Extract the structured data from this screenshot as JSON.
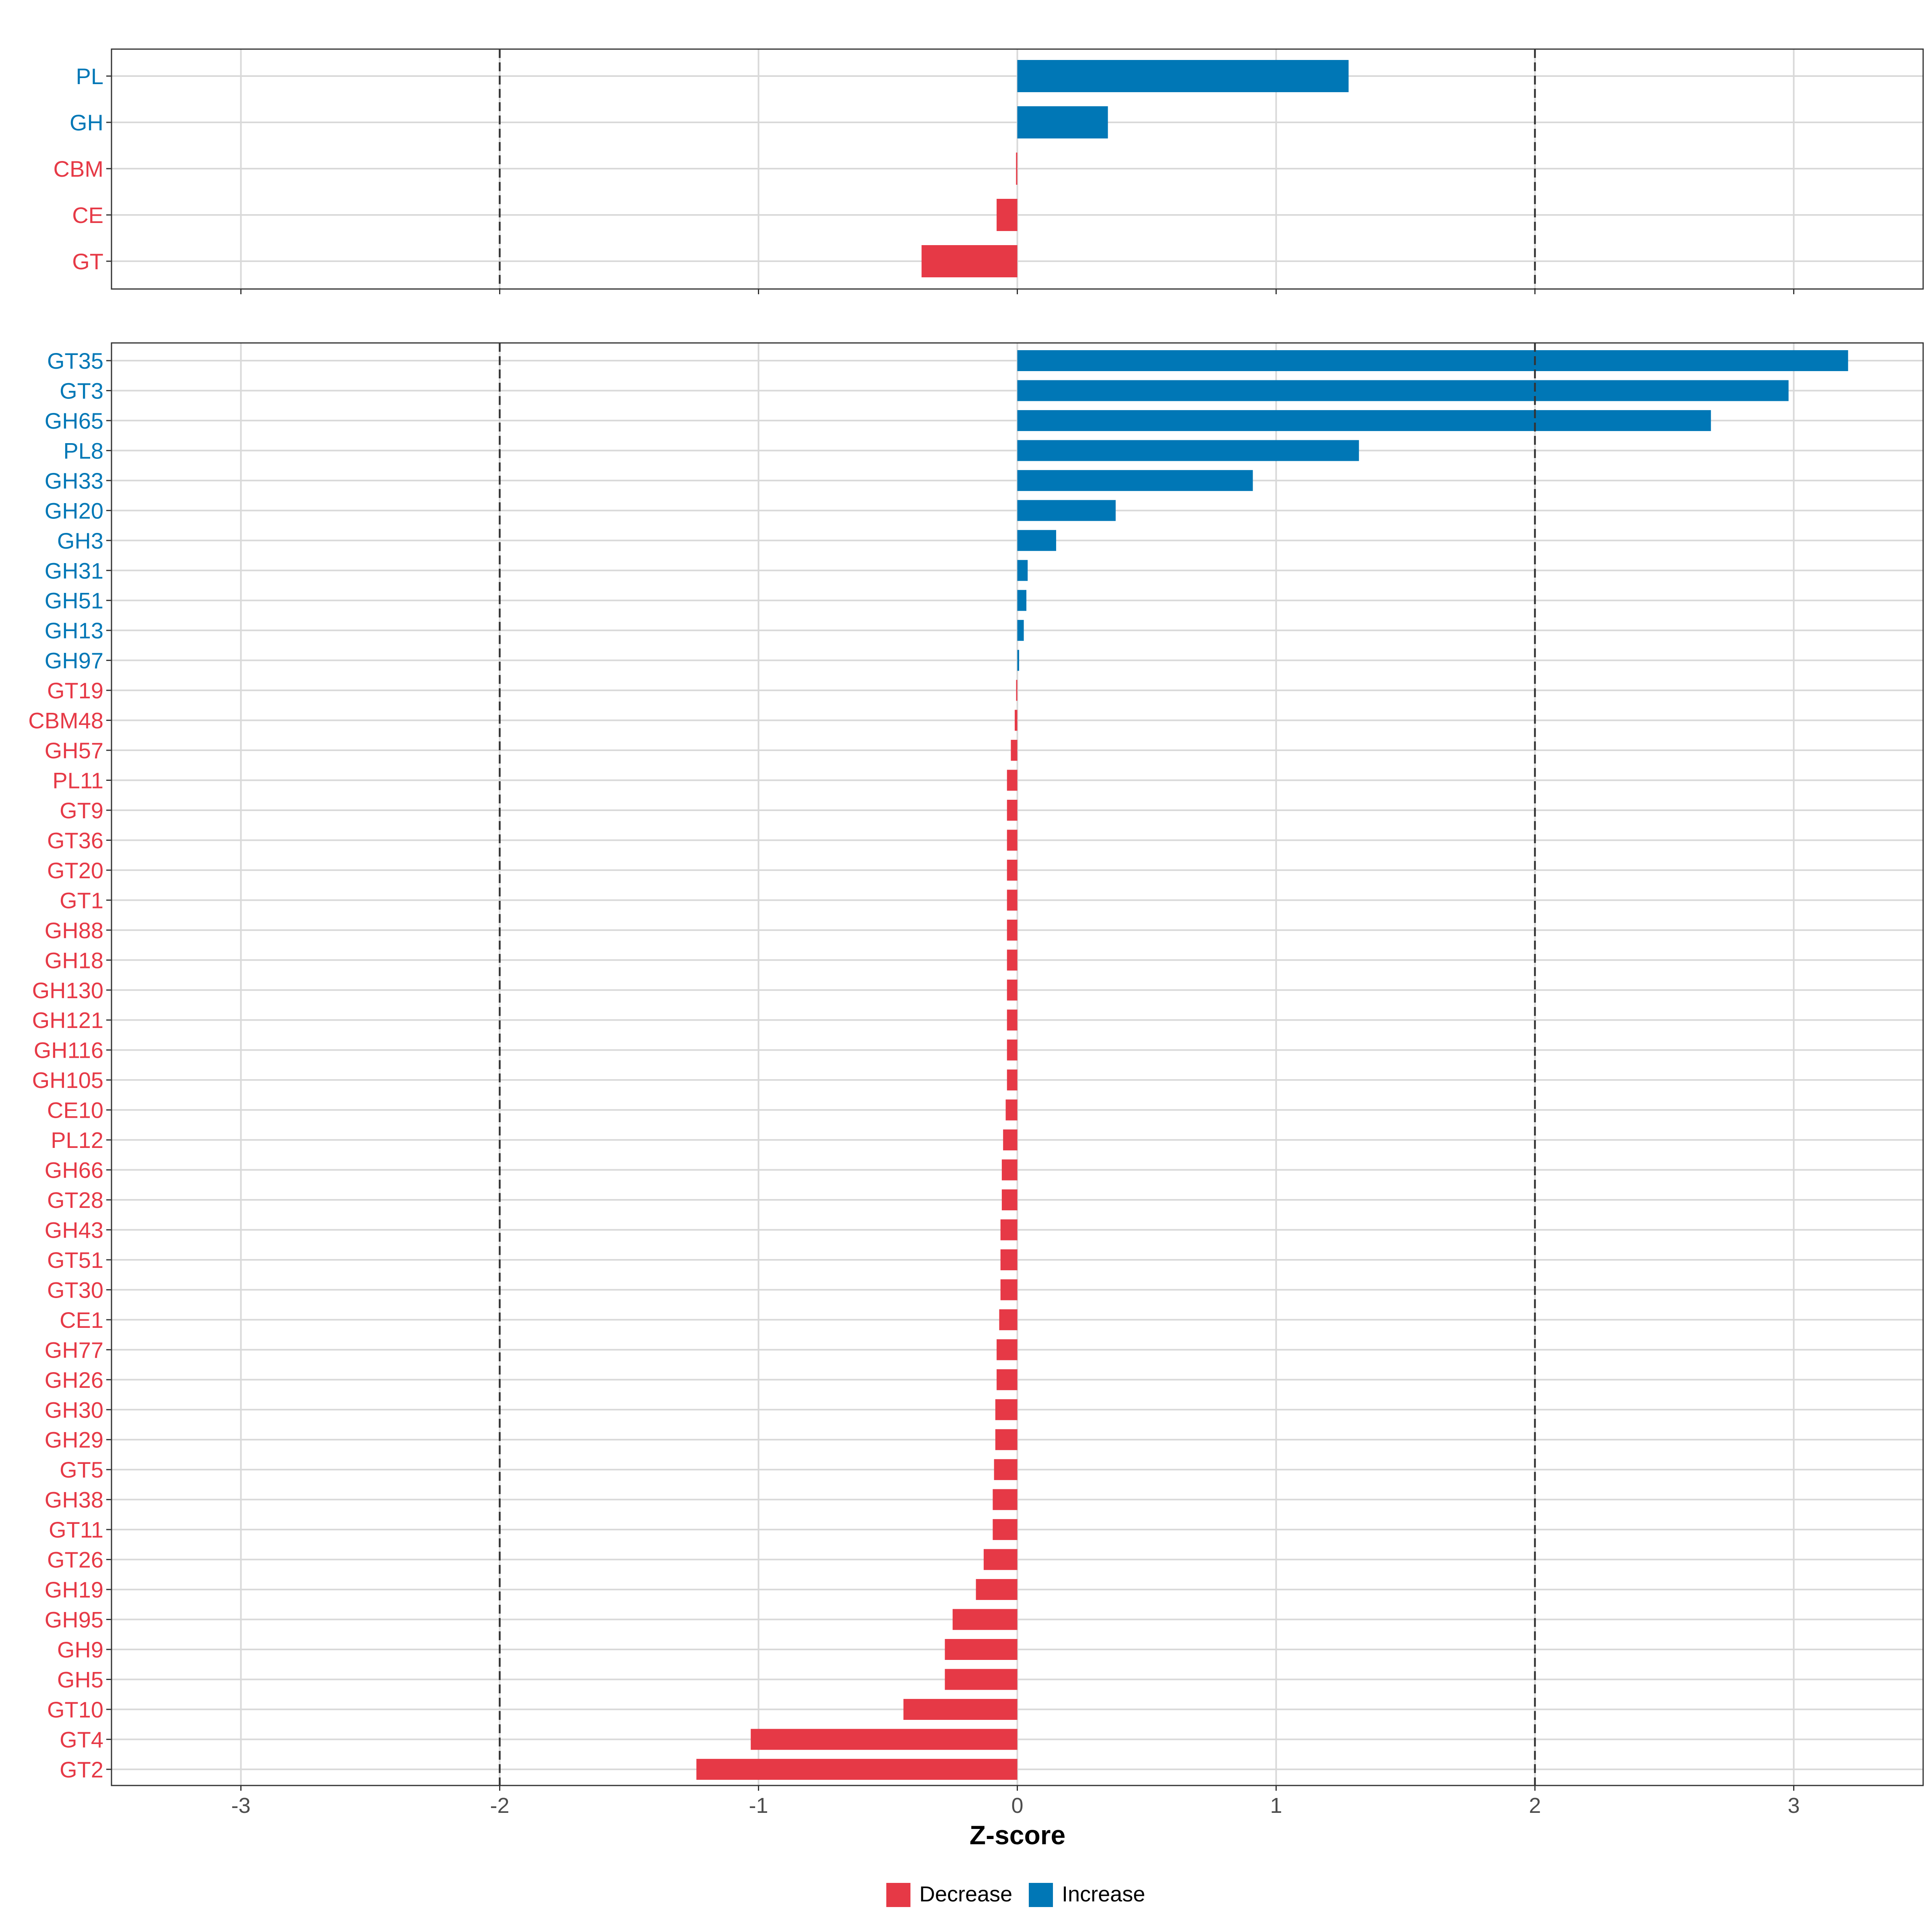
{
  "colors": {
    "decrease": "#E63946",
    "increase": "#0077B6",
    "grid": "#D9D9D9",
    "panel_border": "#333333",
    "threshold_line": "#333333",
    "axis_text": "#4D4D4D"
  },
  "chart_data": [
    {
      "type": "bar",
      "orientation": "horizontal",
      "panel": "top",
      "xlabel": "",
      "xlim": [
        -3.5,
        3.5
      ],
      "xticks": [
        -3,
        -2,
        -1,
        0,
        1,
        2,
        3
      ],
      "threshold_lines": [
        -2,
        2
      ],
      "categories": [
        "PL",
        "GH",
        "CBM",
        "CE",
        "GT"
      ],
      "values": [
        1.28,
        0.35,
        -0.005,
        -0.08,
        -0.37
      ],
      "direction": [
        "Increase",
        "Increase",
        "Decrease",
        "Decrease",
        "Decrease"
      ]
    },
    {
      "type": "bar",
      "orientation": "horizontal",
      "panel": "bottom",
      "xlabel": "Z-score",
      "xlim": [
        -3.5,
        3.5
      ],
      "xticks": [
        -3,
        -2,
        -1,
        0,
        1,
        2,
        3
      ],
      "xtick_labels": [
        "-3",
        "-2",
        "-1",
        "0",
        "1",
        "2",
        "3"
      ],
      "threshold_lines": [
        -2,
        2
      ],
      "categories": [
        "GT35",
        "GT3",
        "GH65",
        "PL8",
        "GH33",
        "GH20",
        "GH3",
        "GH31",
        "GH51",
        "GH13",
        "GH97",
        "GT19",
        "CBM48",
        "GH57",
        "PL11",
        "GT9",
        "GT36",
        "GT20",
        "GT1",
        "GH88",
        "GH18",
        "GH130",
        "GH121",
        "GH116",
        "GH105",
        "CE10",
        "PL12",
        "GH66",
        "GT28",
        "GH43",
        "GT51",
        "GT30",
        "CE1",
        "GH77",
        "GH26",
        "GH30",
        "GH29",
        "GT5",
        "GH38",
        "GT11",
        "GT26",
        "GH19",
        "GH95",
        "GH9",
        "GH5",
        "GT10",
        "GT4",
        "GT2"
      ],
      "values": [
        3.21,
        2.98,
        2.68,
        1.32,
        0.91,
        0.38,
        0.15,
        0.04,
        0.035,
        0.025,
        0.007,
        -0.003,
        -0.01,
        -0.025,
        -0.04,
        -0.04,
        -0.04,
        -0.04,
        -0.04,
        -0.04,
        -0.04,
        -0.04,
        -0.04,
        -0.04,
        -0.04,
        -0.045,
        -0.055,
        -0.06,
        -0.06,
        -0.065,
        -0.065,
        -0.065,
        -0.07,
        -0.08,
        -0.08,
        -0.085,
        -0.085,
        -0.09,
        -0.095,
        -0.095,
        -0.13,
        -0.16,
        -0.25,
        -0.28,
        -0.28,
        -0.44,
        -1.03,
        -1.24
      ],
      "direction": [
        "Increase",
        "Increase",
        "Increase",
        "Increase",
        "Increase",
        "Increase",
        "Increase",
        "Increase",
        "Increase",
        "Increase",
        "Increase",
        "Decrease",
        "Decrease",
        "Decrease",
        "Decrease",
        "Decrease",
        "Decrease",
        "Decrease",
        "Decrease",
        "Decrease",
        "Decrease",
        "Decrease",
        "Decrease",
        "Decrease",
        "Decrease",
        "Decrease",
        "Decrease",
        "Decrease",
        "Decrease",
        "Decrease",
        "Decrease",
        "Decrease",
        "Decrease",
        "Decrease",
        "Decrease",
        "Decrease",
        "Decrease",
        "Decrease",
        "Decrease",
        "Decrease",
        "Decrease",
        "Decrease",
        "Decrease",
        "Decrease",
        "Decrease",
        "Decrease",
        "Decrease",
        "Decrease"
      ]
    }
  ],
  "legend": {
    "position": "bottom",
    "items": [
      {
        "label": "Decrease",
        "key": "decrease"
      },
      {
        "label": "Increase",
        "key": "increase"
      }
    ]
  }
}
